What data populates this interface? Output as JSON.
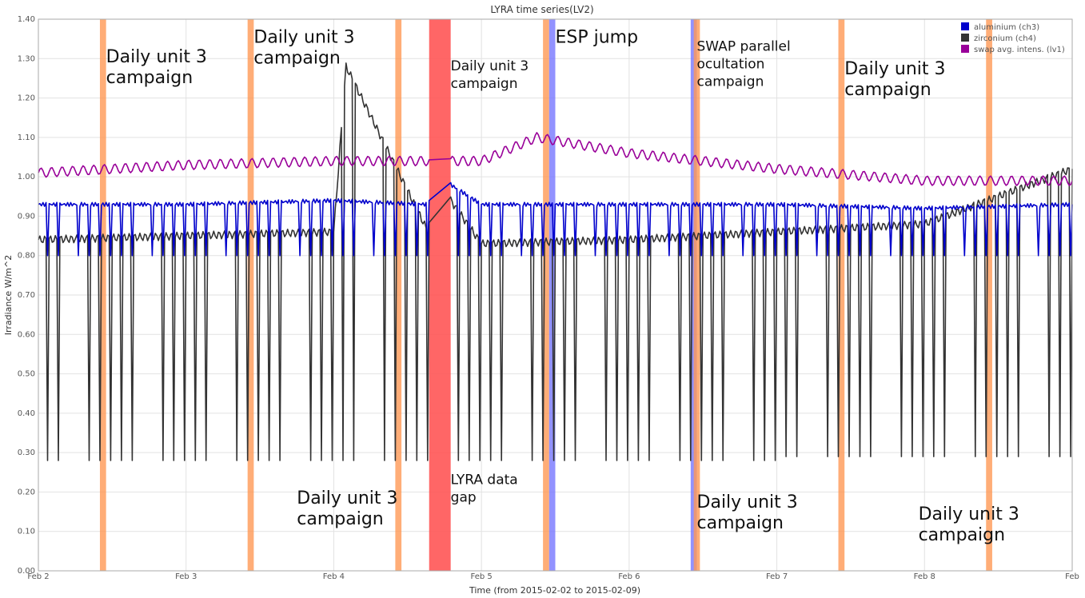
{
  "chart_data": {
    "type": "line",
    "title": "LYRA time series(LV2)",
    "xlabel": "Time (from 2015-02-02 to 2015-02-09)",
    "ylabel": "Irradiance W/m^2",
    "x_range": [
      "2015-02-02",
      "2015-02-09"
    ],
    "ylim": [
      0,
      1.4
    ],
    "x_ticks": [
      {
        "date": "2015-02-02",
        "label": "Feb 2"
      },
      {
        "date": "2015-02-03",
        "label": "Feb 3"
      },
      {
        "date": "2015-02-04",
        "label": "Feb 4"
      },
      {
        "date": "2015-02-05",
        "label": "Feb 5"
      },
      {
        "date": "2015-02-06",
        "label": "Feb 6"
      },
      {
        "date": "2015-02-07",
        "label": "Feb 7"
      },
      {
        "date": "2015-02-08",
        "label": "Feb 8"
      },
      {
        "date": "2015-02-09",
        "label": "Feb"
      }
    ],
    "y_ticks": [
      "0.00",
      "0.10",
      "0.20",
      "0.30",
      "0.40",
      "0.50",
      "0.60",
      "0.70",
      "0.80",
      "0.90",
      "1.00",
      "1.10",
      "1.20",
      "1.30",
      "1.40"
    ],
    "grid": true,
    "legend_position": "top-right",
    "legend": [
      {
        "name": "aluminium (ch3)",
        "color": "#0000cc"
      },
      {
        "name": "zirconium (ch4)",
        "color": "#333333"
      },
      {
        "name": "swap avg. intens. (lv1)",
        "color": "#990099"
      }
    ],
    "series": [
      {
        "name": "aluminium (ch3)",
        "color": "#0000cc",
        "baseline": 0.93,
        "dip_to": 0.8,
        "x": [
          "2015-02-02",
          "2015-02-03",
          "2015-02-04",
          "2015-02-04T15:00",
          "2015-02-04T19:00",
          "2015-02-05",
          "2015-02-06",
          "2015-02-07",
          "2015-02-08",
          "2015-02-09"
        ],
        "y": [
          0.93,
          0.93,
          0.94,
          0.93,
          0.98,
          0.93,
          0.93,
          0.93,
          0.92,
          0.93
        ]
      },
      {
        "name": "zirconium (ch4)",
        "color": "#333333",
        "baseline": 0.84,
        "x": [
          "2015-02-02",
          "2015-02-03",
          "2015-02-04",
          "2015-02-04T02:00",
          "2015-02-04T15:00",
          "2015-02-04T19:00",
          "2015-02-05",
          "2015-02-06",
          "2015-02-07",
          "2015-02-08",
          "2015-02-09"
        ],
        "y": [
          0.84,
          0.85,
          0.86,
          1.28,
          0.87,
          0.94,
          0.83,
          0.84,
          0.86,
          0.88,
          1.02
        ],
        "dip_minimum": [
          0.28,
          0.28,
          0.28,
          0.28,
          0.28,
          0.29,
          0.29,
          0.3,
          0.33,
          0.36
        ]
      },
      {
        "name": "swap avg. intens. (lv1)",
        "color": "#990099",
        "x": [
          "2015-02-02",
          "2015-02-03",
          "2015-02-04",
          "2015-02-05",
          "2015-02-05T09:00",
          "2015-02-06",
          "2015-02-07",
          "2015-02-08",
          "2015-02-09"
        ],
        "y": [
          1.01,
          1.03,
          1.04,
          1.04,
          1.1,
          1.06,
          1.02,
          0.99,
          0.99
        ]
      }
    ],
    "bands": [
      {
        "kind": "campaign",
        "color": "#ff9955",
        "start": "2015-02-02T10:00",
        "end": "2015-02-02T11:00"
      },
      {
        "kind": "campaign",
        "color": "#ff9955",
        "start": "2015-02-03T10:00",
        "end": "2015-02-03T11:00"
      },
      {
        "kind": "campaign",
        "color": "#ff9955",
        "start": "2015-02-04T10:00",
        "end": "2015-02-04T11:00"
      },
      {
        "kind": "data gap",
        "color": "#ff5555",
        "start": "2015-02-04T15:30",
        "end": "2015-02-04T19:00"
      },
      {
        "kind": "campaign",
        "color": "#ff9955",
        "start": "2015-02-05T10:00",
        "end": "2015-02-05T11:00"
      },
      {
        "kind": "ESP jump",
        "color": "#7777ff",
        "start": "2015-02-05T11:00",
        "end": "2015-02-05T12:00"
      },
      {
        "kind": "SWAP occultation",
        "color": "#7777ff",
        "start": "2015-02-06T10:00",
        "end": "2015-02-06T11:00"
      },
      {
        "kind": "campaign",
        "color": "#ff9955",
        "start": "2015-02-06T10:30",
        "end": "2015-02-06T11:30"
      },
      {
        "kind": "campaign",
        "color": "#ff9955",
        "start": "2015-02-07T10:00",
        "end": "2015-02-07T11:00"
      },
      {
        "kind": "campaign",
        "color": "#ff9955",
        "start": "2015-02-08T10:00",
        "end": "2015-02-08T11:00"
      }
    ],
    "annotations": [
      {
        "lines": [
          "Daily unit 3",
          "campaign"
        ],
        "size": "large",
        "x": "2015-02-02T11:00",
        "y": 1.29
      },
      {
        "lines": [
          "Daily unit 3",
          "campaign"
        ],
        "size": "large",
        "x": "2015-02-03T11:00",
        "y": 1.34
      },
      {
        "lines": [
          "Daily unit 3",
          "campaign"
        ],
        "size": "large",
        "x": "2015-02-03T18:00",
        "y": 0.17
      },
      {
        "lines": [
          "Daily unit 3",
          "campaign"
        ],
        "size": "small",
        "x": "2015-02-04T19:00",
        "y": 1.27
      },
      {
        "lines": [
          "LYRA data",
          "gap"
        ],
        "size": "small",
        "x": "2015-02-04T19:00",
        "y": 0.22
      },
      {
        "lines": [
          "ESP jump"
        ],
        "size": "large",
        "x": "2015-02-05T12:00",
        "y": 1.34
      },
      {
        "lines": [
          "SWAP parallel",
          "ocultation",
          "campaign"
        ],
        "size": "small",
        "x": "2015-02-06T11:00",
        "y": 1.32
      },
      {
        "lines": [
          "Daily unit 3",
          "campaign"
        ],
        "size": "large",
        "x": "2015-02-06T11:00",
        "y": 0.16
      },
      {
        "lines": [
          "Daily unit 3",
          "campaign"
        ],
        "size": "large",
        "x": "2015-02-07T11:00",
        "y": 1.26
      },
      {
        "lines": [
          "Daily unit 3",
          "campaign"
        ],
        "size": "large",
        "x": "2015-02-07T23:00",
        "y": 0.13
      }
    ]
  }
}
